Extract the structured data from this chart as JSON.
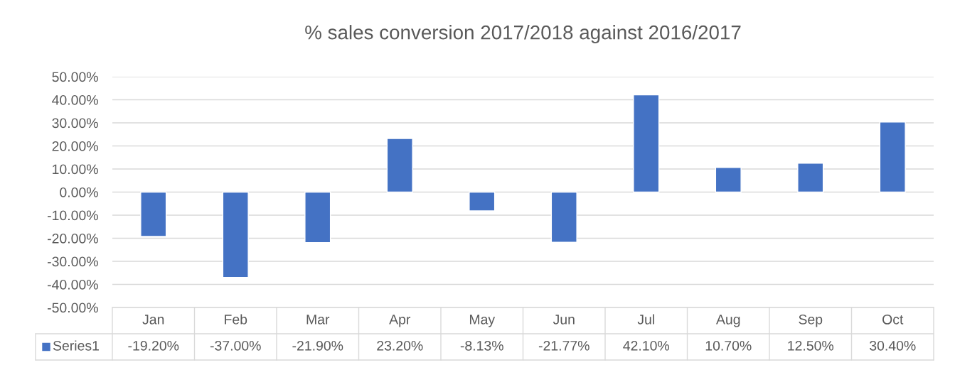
{
  "chart_data": {
    "type": "bar",
    "title": "% sales conversion 2017/2018 against 2016/2017",
    "categories": [
      "Jan",
      "Feb",
      "Mar",
      "Apr",
      "May",
      "Jun",
      "Jul",
      "Aug",
      "Sep",
      "Oct"
    ],
    "series": [
      {
        "name": "Series1",
        "color": "#4472c4",
        "values": [
          -19.2,
          -37.0,
          -21.9,
          23.2,
          -8.13,
          -21.77,
          42.1,
          10.7,
          12.5,
          30.4
        ],
        "value_labels": [
          "-19.20%",
          "-37.00%",
          "-21.90%",
          "23.20%",
          "-8.13%",
          "-21.77%",
          "42.10%",
          "10.70%",
          "12.50%",
          "30.40%"
        ]
      }
    ],
    "ylim": [
      -50,
      50
    ],
    "yticks": [
      {
        "value": -50,
        "label": "-50.00%"
      },
      {
        "value": -40,
        "label": "-40.00%"
      },
      {
        "value": -30,
        "label": "-30.00%"
      },
      {
        "value": -20,
        "label": "-20.00%"
      },
      {
        "value": -10,
        "label": "-10.00%"
      },
      {
        "value": 0,
        "label": "0.00%"
      },
      {
        "value": 10,
        "label": "10.00%"
      },
      {
        "value": 20,
        "label": "20.00%"
      },
      {
        "value": 30,
        "label": "30.00%"
      },
      {
        "value": 40,
        "label": "40.00%"
      },
      {
        "value": 50,
        "label": "50.00%"
      }
    ],
    "grid": "y",
    "legend": "bottom"
  }
}
